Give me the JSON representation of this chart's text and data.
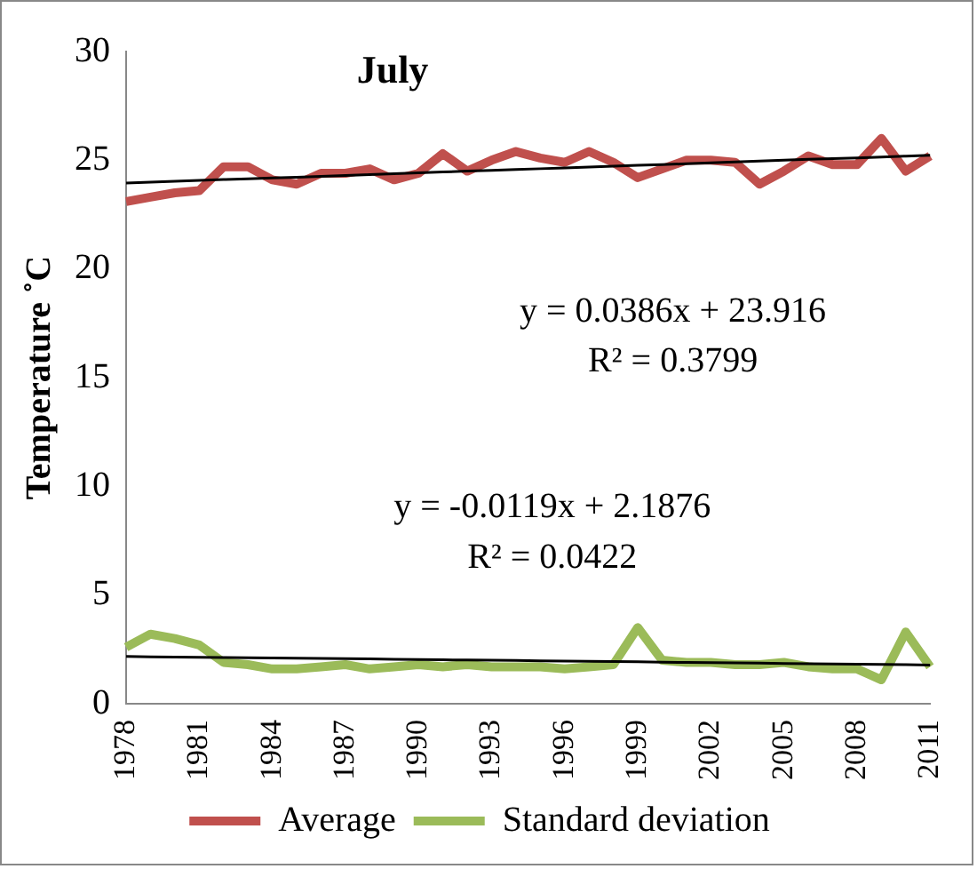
{
  "chart_data": {
    "type": "line",
    "title": "July",
    "ylabel": "Temperature ˚C",
    "categories": [
      "1978",
      null,
      null,
      "1981",
      null,
      null,
      "1984",
      null,
      null,
      "1987",
      null,
      null,
      "1990",
      null,
      null,
      "1993",
      null,
      null,
      "1996",
      null,
      null,
      "1999",
      null,
      null,
      "2002",
      null,
      null,
      "2005",
      null,
      null,
      "2008",
      null,
      null,
      "2011"
    ],
    "series": [
      {
        "name": "Average",
        "color": "#c0504d",
        "values": [
          23.1,
          23.3,
          23.5,
          23.6,
          24.7,
          24.7,
          24.1,
          23.9,
          24.4,
          24.4,
          24.6,
          24.1,
          24.4,
          25.3,
          24.5,
          25.0,
          25.4,
          25.1,
          24.9,
          25.4,
          24.9,
          24.2,
          24.6,
          25.0,
          25.0,
          24.9,
          23.9,
          24.5,
          25.2,
          24.8,
          24.8,
          26.0,
          24.5,
          25.2
        ]
      },
      {
        "name": "Standard deviation",
        "color": "#9bbb59",
        "values": [
          2.6,
          3.2,
          3.0,
          2.7,
          1.9,
          1.8,
          1.6,
          1.6,
          1.7,
          1.8,
          1.6,
          1.7,
          1.8,
          1.7,
          1.8,
          1.7,
          1.7,
          1.7,
          1.6,
          1.7,
          1.8,
          3.5,
          2.0,
          1.9,
          1.9,
          1.8,
          1.8,
          1.9,
          1.7,
          1.6,
          1.6,
          1.1,
          3.3,
          1.7
        ]
      },
      {
        "type": "line",
        "color": "#000000",
        "values": [
          23.95,
          23.99,
          24.03,
          24.07,
          24.11,
          24.15,
          24.19,
          24.22,
          24.26,
          24.3,
          24.34,
          24.38,
          24.42,
          24.46,
          24.5,
          24.53,
          24.57,
          24.61,
          24.65,
          24.69,
          24.73,
          24.77,
          24.8,
          24.84,
          24.88,
          24.92,
          24.96,
          25.0,
          25.04,
          25.07,
          25.11,
          25.15,
          25.19,
          25.23
        ]
      },
      {
        "type": "line",
        "color": "#000000",
        "values": [
          2.18,
          2.16,
          2.15,
          2.14,
          2.13,
          2.12,
          2.1,
          2.09,
          2.08,
          2.07,
          2.06,
          2.04,
          2.03,
          2.02,
          2.01,
          2.0,
          1.99,
          1.97,
          1.96,
          1.95,
          1.94,
          1.93,
          1.91,
          1.9,
          1.89,
          1.88,
          1.87,
          1.85,
          1.84,
          1.83,
          1.82,
          1.81,
          1.8,
          1.78
        ]
      }
    ],
    "ylim": [
      0,
      30
    ],
    "yticks": [
      0,
      5,
      10,
      15,
      20,
      25,
      30
    ],
    "annotations": [
      "y = 0.0386x + 23.916",
      "R² = 0.3799",
      "y = -0.0119x + 2.1876",
      "R² = 0.0422"
    ],
    "grid": false,
    "legend": "bottom",
    "marker": "none",
    "line_style": "solid"
  }
}
